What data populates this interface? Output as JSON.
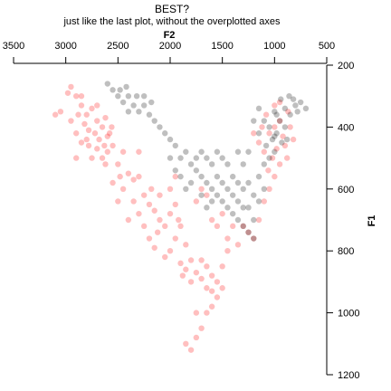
{
  "chart_data": {
    "type": "scatter",
    "title": "BEST?",
    "subtitle": "just like the last plot, without the overplotted axes",
    "xlabel": "F2",
    "ylabel": "F1",
    "x_reversed": true,
    "y_reversed": true,
    "x_axis_position": "top",
    "y_axis_position": "right",
    "xlim": [
      3500,
      500
    ],
    "ylim": [
      200,
      1200
    ],
    "x_ticks": [
      "3500",
      "3000",
      "2500",
      "2000",
      "1500",
      "1000",
      "500"
    ],
    "y_ticks": [
      "200",
      "400",
      "600",
      "800",
      "1000",
      "1200"
    ],
    "grid": false,
    "point_alpha": 0.25,
    "series": [
      {
        "color": "#ff0000",
        "points": [
          [
            2950,
            270
          ],
          [
            2980,
            290
          ],
          [
            2900,
            300
          ],
          [
            2850,
            330
          ],
          [
            2800,
            360
          ],
          [
            2750,
            340
          ],
          [
            2700,
            380
          ],
          [
            2650,
            400
          ],
          [
            2720,
            420
          ],
          [
            2680,
            440
          ],
          [
            2600,
            430
          ],
          [
            2780,
            410
          ],
          [
            2820,
            390
          ],
          [
            2880,
            360
          ],
          [
            2900,
            420
          ],
          [
            2950,
            380
          ],
          [
            2550,
            460
          ],
          [
            2600,
            480
          ],
          [
            2650,
            500
          ],
          [
            2500,
            520
          ],
          [
            2450,
            480
          ],
          [
            2700,
            470
          ],
          [
            2750,
            500
          ],
          [
            2850,
            450
          ],
          [
            3050,
            350
          ],
          [
            3100,
            360
          ],
          [
            2700,
            330
          ],
          [
            2620,
            370
          ],
          [
            2580,
            420
          ],
          [
            2630,
            460
          ],
          [
            2560,
            400
          ],
          [
            2800,
            440
          ],
          [
            2400,
            550
          ],
          [
            2350,
            570
          ],
          [
            2300,
            560
          ],
          [
            2250,
            620
          ],
          [
            2200,
            650
          ],
          [
            2150,
            670
          ],
          [
            2100,
            700
          ],
          [
            2050,
            720
          ],
          [
            2000,
            680
          ],
          [
            1950,
            650
          ],
          [
            2100,
            620
          ],
          [
            2250,
            720
          ],
          [
            2200,
            760
          ],
          [
            2150,
            790
          ],
          [
            2050,
            820
          ],
          [
            2000,
            800
          ],
          [
            1950,
            760
          ],
          [
            1900,
            720
          ],
          [
            2300,
            680
          ],
          [
            2350,
            640
          ],
          [
            2450,
            600
          ],
          [
            2550,
            580
          ],
          [
            2500,
            640
          ],
          [
            2400,
            700
          ],
          [
            1850,
            780
          ],
          [
            1800,
            830
          ],
          [
            1750,
            870
          ],
          [
            1700,
            890
          ],
          [
            1650,
            920
          ],
          [
            1600,
            930
          ],
          [
            1550,
            950
          ],
          [
            1600,
            980
          ],
          [
            1650,
            1000
          ],
          [
            1700,
            1050
          ],
          [
            1750,
            1080
          ],
          [
            1800,
            1120
          ],
          [
            1850,
            1100
          ],
          [
            1750,
            1000
          ],
          [
            1550,
            900
          ],
          [
            1500,
            850
          ],
          [
            1650,
            850
          ],
          [
            1700,
            830
          ],
          [
            1800,
            900
          ],
          [
            1850,
            860
          ],
          [
            1900,
            840
          ],
          [
            1600,
            880
          ],
          [
            1500,
            920
          ],
          [
            1450,
            800
          ],
          [
            1700,
            600
          ],
          [
            1750,
            640
          ],
          [
            1650,
            620
          ],
          [
            1600,
            700
          ],
          [
            1550,
            720
          ],
          [
            1500,
            680
          ],
          [
            1450,
            760
          ],
          [
            1400,
            720
          ],
          [
            1350,
            780
          ],
          [
            1300,
            720
          ],
          [
            1250,
            740
          ],
          [
            1200,
            760
          ],
          [
            1150,
            700
          ],
          [
            1100,
            640
          ],
          [
            1050,
            600
          ],
          [
            1000,
            560
          ],
          [
            1000,
            400
          ],
          [
            950,
            380
          ],
          [
            920,
            430
          ],
          [
            1050,
            420
          ],
          [
            1080,
            360
          ],
          [
            1120,
            400
          ],
          [
            980,
            470
          ],
          [
            1020,
            500
          ],
          [
            900,
            460
          ],
          [
            850,
            400
          ],
          [
            870,
            350
          ],
          [
            1150,
            450
          ],
          [
            1100,
            480
          ],
          [
            950,
            520
          ],
          [
            880,
            500
          ],
          [
            820,
            440
          ],
          [
            1060,
            540
          ],
          [
            1200,
            420
          ],
          [
            1000,
            330
          ],
          [
            950,
            320
          ],
          [
            2900,
            500
          ],
          [
            2300,
            480
          ],
          [
            1950,
            560
          ],
          [
            2000,
            600
          ],
          [
            2850,
            300
          ],
          [
            2780,
            460
          ],
          [
            2620,
            520
          ],
          [
            2480,
            560
          ],
          [
            2180,
            600
          ],
          [
            2120,
            740
          ],
          [
            1920,
            700
          ],
          [
            1880,
            880
          ]
        ]
      },
      {
        "color": "#000000",
        "points": [
          [
            2600,
            260
          ],
          [
            2550,
            280
          ],
          [
            2500,
            300
          ],
          [
            2450,
            320
          ],
          [
            2400,
            300
          ],
          [
            2350,
            330
          ],
          [
            2300,
            350
          ],
          [
            2250,
            330
          ],
          [
            2200,
            360
          ],
          [
            2150,
            380
          ],
          [
            2400,
            350
          ],
          [
            2480,
            280
          ],
          [
            2420,
            270
          ],
          [
            2320,
            300
          ],
          [
            2250,
            300
          ],
          [
            2180,
            320
          ],
          [
            2100,
            400
          ],
          [
            2050,
            420
          ],
          [
            2000,
            440
          ],
          [
            1950,
            460
          ],
          [
            1900,
            500
          ],
          [
            1850,
            480
          ],
          [
            1800,
            520
          ],
          [
            1750,
            540
          ],
          [
            1700,
            560
          ],
          [
            1650,
            580
          ],
          [
            1600,
            600
          ],
          [
            1550,
            620
          ],
          [
            1500,
            640
          ],
          [
            1450,
            660
          ],
          [
            1400,
            680
          ],
          [
            1350,
            700
          ],
          [
            1300,
            720
          ],
          [
            1250,
            740
          ],
          [
            1200,
            760
          ],
          [
            1900,
            560
          ],
          [
            1850,
            600
          ],
          [
            1800,
            580
          ],
          [
            2000,
            500
          ],
          [
            1950,
            540
          ],
          [
            1600,
            520
          ],
          [
            1550,
            560
          ],
          [
            1500,
            580
          ],
          [
            1450,
            600
          ],
          [
            1400,
            620
          ],
          [
            1350,
            640
          ],
          [
            1300,
            600
          ],
          [
            1250,
            580
          ],
          [
            1200,
            620
          ],
          [
            1150,
            560
          ],
          [
            1100,
            520
          ],
          [
            1050,
            500
          ],
          [
            1000,
            480
          ],
          [
            1300,
            520
          ],
          [
            1350,
            480
          ],
          [
            1250,
            480
          ],
          [
            1000,
            350
          ],
          [
            950,
            380
          ],
          [
            900,
            400
          ],
          [
            850,
            360
          ],
          [
            800,
            330
          ],
          [
            750,
            320
          ],
          [
            980,
            420
          ],
          [
            1020,
            440
          ],
          [
            1100,
            380
          ],
          [
            1150,
            420
          ],
          [
            1080,
            460
          ],
          [
            900,
            340
          ],
          [
            860,
            300
          ],
          [
            820,
            310
          ],
          [
            780,
            350
          ],
          [
            940,
            310
          ],
          [
            1050,
            400
          ],
          [
            1000,
            430
          ],
          [
            930,
            450
          ],
          [
            880,
            440
          ],
          [
            1200,
            380
          ],
          [
            1150,
            340
          ],
          [
            700,
            340
          ],
          [
            980,
            360
          ],
          [
            1700,
            480
          ],
          [
            1750,
            500
          ],
          [
            1650,
            500
          ],
          [
            1400,
            560
          ],
          [
            1450,
            520
          ],
          [
            1500,
            500
          ],
          [
            1550,
            480
          ],
          [
            1150,
            640
          ],
          [
            1100,
            600
          ],
          [
            1250,
            660
          ],
          [
            1350,
            580
          ],
          [
            1700,
            620
          ],
          [
            1650,
            660
          ],
          [
            1600,
            640
          ],
          [
            1200,
            700
          ],
          [
            1300,
            660
          ]
        ]
      }
    ]
  }
}
